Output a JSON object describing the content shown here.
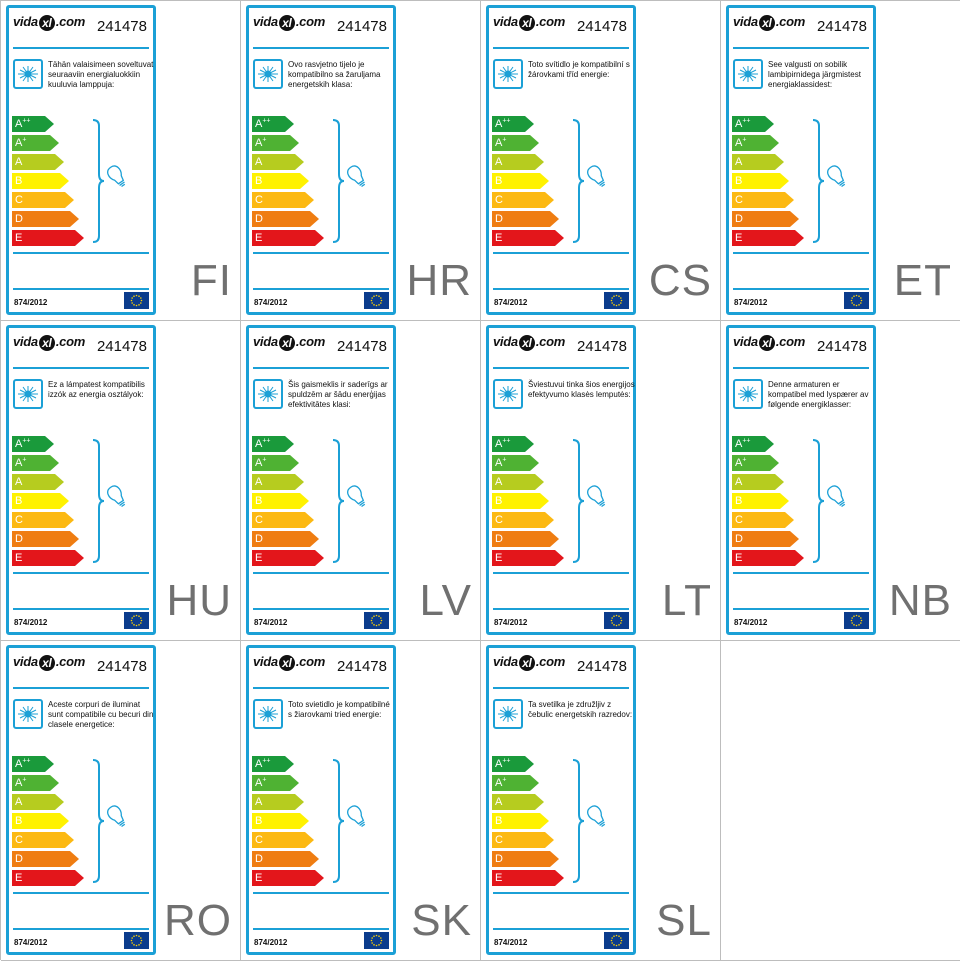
{
  "label": {
    "code": "241478",
    "regulation": "874/2012",
    "brand": {
      "prefix": "vida",
      "mark": "xl",
      "suffix": ".com"
    },
    "classes": [
      {
        "letter": "A",
        "sup": "++",
        "color": "#1a9a3b"
      },
      {
        "letter": "A",
        "sup": "+",
        "color": "#4fb233"
      },
      {
        "letter": "A",
        "sup": "",
        "color": "#b6cc1f"
      },
      {
        "letter": "B",
        "sup": "",
        "color": "#fff200"
      },
      {
        "letter": "C",
        "sup": "",
        "color": "#fcb912"
      },
      {
        "letter": "D",
        "sup": "",
        "color": "#ef7d12"
      },
      {
        "letter": "E",
        "sup": "",
        "color": "#e3161b"
      }
    ],
    "accent_color": "#1ba0d6",
    "icons": [
      "lamp-icon",
      "bulb-icon",
      "eu-flag-icon"
    ]
  },
  "labels": [
    {
      "lang": "FI",
      "text": "Tähän valaisimeen soveltuvat seuraaviin energialuokkiin kuuluvia lamppuja:"
    },
    {
      "lang": "HR",
      "text": "Ovo rasvjetno tijelo je kompatibilno sa žaruljama energetskih klasa:"
    },
    {
      "lang": "CS",
      "text": "Toto svítidlo je kompatibilní s žárovkami tříd energie:"
    },
    {
      "lang": "ET",
      "text": "See valgusti on sobilik lambipirnidega järgmistest energiaklassidest:"
    },
    {
      "lang": "HU",
      "text": "Ez a lámpatest kompatibilis izzók az energia osztályok:"
    },
    {
      "lang": "LV",
      "text": "Šis gaismeklis ir saderīgs ar spuldzēm ar šādu enerģijas efektivitātes klasi:"
    },
    {
      "lang": "LT",
      "text": "Šviestuvui tinka šios energijos efektyvumo klasės lemputės:"
    },
    {
      "lang": "NB",
      "text": "Denne armaturen er kompatibel med lyspærer av følgende energiklasser:"
    },
    {
      "lang": "RO",
      "text": "Aceste corpuri de iluminat sunt compatibile cu becuri din clasele energetice:"
    },
    {
      "lang": "SK",
      "text": "Toto svietidlo je kompatibilné s žiarovkami tried energie:"
    },
    {
      "lang": "SL",
      "text": "Ta svetilka je združljiv z čebulic energetskih razredov:"
    }
  ]
}
